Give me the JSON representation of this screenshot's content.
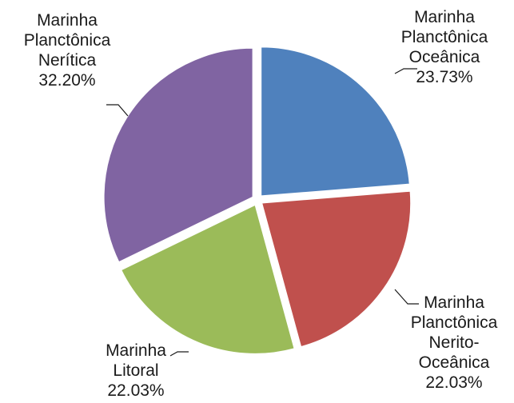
{
  "chart_data": {
    "type": "pie",
    "title": "",
    "slices": [
      {
        "lines": [
          "Marinha",
          "Planctônica",
          "Oceânica"
        ],
        "value_label": "23.73%",
        "value": 23.73,
        "color": "#4f81bd"
      },
      {
        "lines": [
          "Marinha",
          "Planctônica",
          "Nerito-",
          "Oceânica"
        ],
        "value_label": "22.03%",
        "value": 22.03,
        "color": "#c0504d"
      },
      {
        "lines": [
          "Marinha",
          "Litoral"
        ],
        "value_label": "22.03%",
        "value": 22.03,
        "color": "#9bbb59"
      },
      {
        "lines": [
          "Marinha",
          "Planctônica",
          "Nerítica"
        ],
        "value_label": "32.20%",
        "value": 32.2,
        "color": "#8064a2"
      }
    ],
    "start_angle": "12 o'clock",
    "direction": "clockwise",
    "exploded": true
  }
}
